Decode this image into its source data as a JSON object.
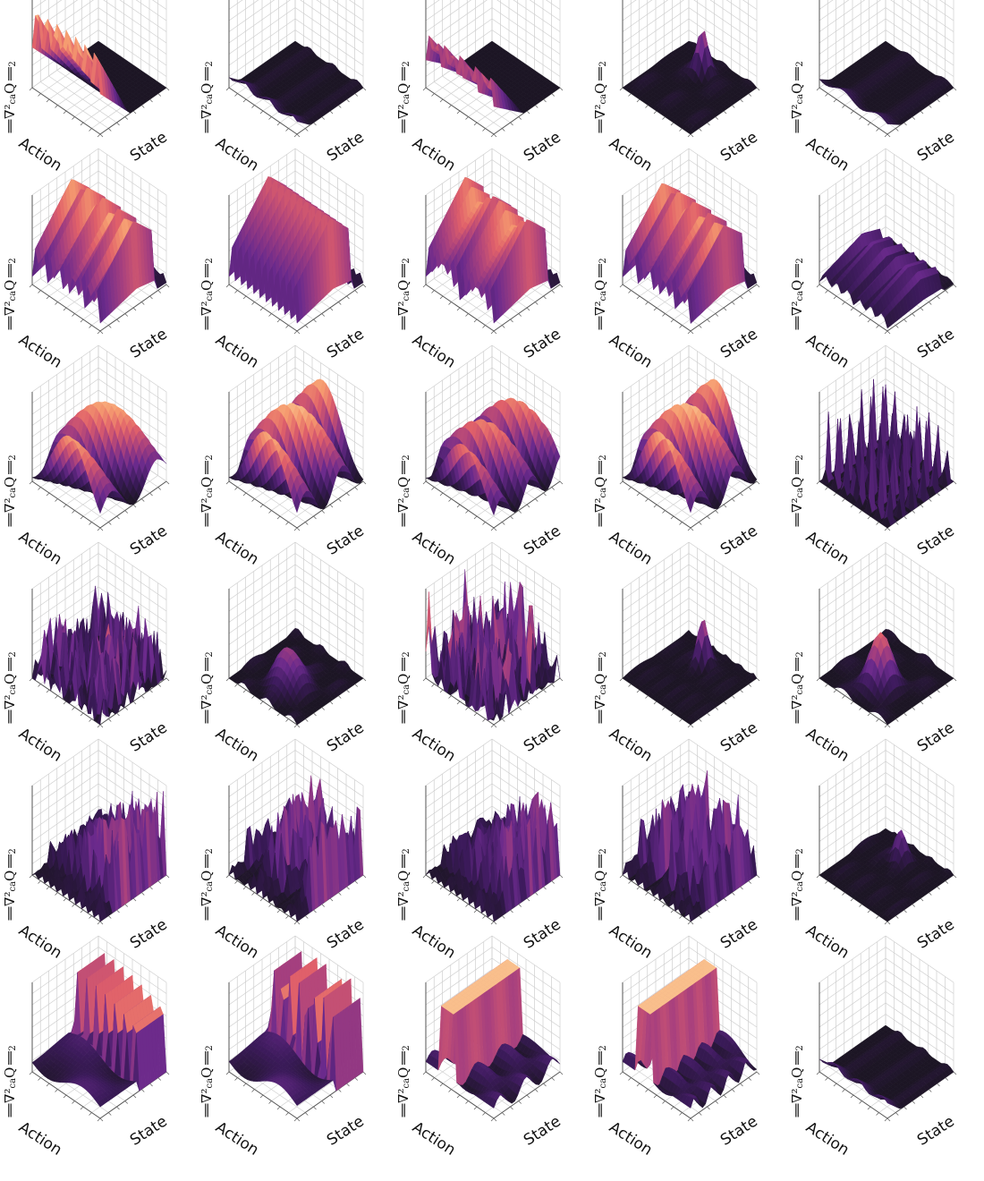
{
  "figure": {
    "rows": 6,
    "cols": 5,
    "zlabel_text": "‖∇²",
    "zlabel_sub": "ca",
    "zlabel_rest": "Q‖",
    "zlabel_tail": "2",
    "xlabel": "Action",
    "ylabel": "State",
    "colormap": [
      "#1c1524",
      "#3b1a5a",
      "#6a2a8c",
      "#a8407e",
      "#e0606a",
      "#f59a6f",
      "#fbd19a"
    ]
  },
  "chart_data": {
    "type": "surface-grid",
    "rows": 6,
    "cols": 5,
    "x_axis": "Action",
    "y_axis": "State",
    "z_axis": "‖∇²caQ‖2",
    "panels": [
      {
        "row": 0,
        "col": 0,
        "amp": 0.95,
        "pattern": "ridge-front",
        "freq": 7
      },
      {
        "row": 0,
        "col": 1,
        "amp": 0.25,
        "pattern": "flat-edge",
        "freq": 3
      },
      {
        "row": 0,
        "col": 2,
        "amp": 0.65,
        "pattern": "ridge-front",
        "freq": 9
      },
      {
        "row": 0,
        "col": 3,
        "amp": 0.55,
        "pattern": "spike",
        "freq": 2
      },
      {
        "row": 0,
        "col": 4,
        "amp": 0.2,
        "pattern": "flat-edge",
        "freq": 2
      },
      {
        "row": 1,
        "col": 0,
        "amp": 1.0,
        "pattern": "ripple",
        "freq": 9
      },
      {
        "row": 1,
        "col": 1,
        "amp": 1.0,
        "pattern": "ripple",
        "freq": 11
      },
      {
        "row": 1,
        "col": 2,
        "amp": 1.0,
        "pattern": "ripple",
        "freq": 10
      },
      {
        "row": 1,
        "col": 3,
        "amp": 0.95,
        "pattern": "ripple",
        "freq": 9
      },
      {
        "row": 1,
        "col": 4,
        "amp": 0.35,
        "pattern": "ripple",
        "freq": 6
      },
      {
        "row": 2,
        "col": 0,
        "amp": 0.85,
        "pattern": "wave",
        "freq": 4
      },
      {
        "row": 2,
        "col": 1,
        "amp": 0.9,
        "pattern": "wave",
        "freq": 5
      },
      {
        "row": 2,
        "col": 2,
        "amp": 0.75,
        "pattern": "wave",
        "freq": 6
      },
      {
        "row": 2,
        "col": 3,
        "amp": 0.9,
        "pattern": "wave",
        "freq": 5
      },
      {
        "row": 2,
        "col": 4,
        "amp": 0.85,
        "pattern": "spikes-sparse",
        "freq": 8
      },
      {
        "row": 3,
        "col": 0,
        "amp": 0.8,
        "pattern": "noisy",
        "freq": 12
      },
      {
        "row": 3,
        "col": 1,
        "amp": 0.5,
        "pattern": "hill",
        "freq": 3
      },
      {
        "row": 3,
        "col": 2,
        "amp": 1.0,
        "pattern": "noisy",
        "freq": 14
      },
      {
        "row": 3,
        "col": 3,
        "amp": 0.5,
        "pattern": "spike",
        "freq": 4
      },
      {
        "row": 3,
        "col": 4,
        "amp": 0.6,
        "pattern": "hill",
        "freq": 2
      },
      {
        "row": 4,
        "col": 0,
        "amp": 1.0,
        "pattern": "spikes-dense",
        "freq": 20
      },
      {
        "row": 4,
        "col": 1,
        "amp": 1.0,
        "pattern": "spikes-dense",
        "freq": 22
      },
      {
        "row": 4,
        "col": 2,
        "amp": 0.95,
        "pattern": "spikes-dense",
        "freq": 20
      },
      {
        "row": 4,
        "col": 3,
        "amp": 1.0,
        "pattern": "spikes-dense",
        "freq": 24
      },
      {
        "row": 4,
        "col": 4,
        "amp": 0.4,
        "pattern": "spike",
        "freq": 3
      },
      {
        "row": 5,
        "col": 0,
        "amp": 0.9,
        "pattern": "comb-back",
        "freq": 14
      },
      {
        "row": 5,
        "col": 1,
        "amp": 1.0,
        "pattern": "comb-back",
        "freq": 16
      },
      {
        "row": 5,
        "col": 2,
        "amp": 1.0,
        "pattern": "wall",
        "freq": 4
      },
      {
        "row": 5,
        "col": 3,
        "amp": 1.0,
        "pattern": "wall",
        "freq": 6
      },
      {
        "row": 5,
        "col": 4,
        "amp": 0.3,
        "pattern": "flat-edge",
        "freq": 3
      }
    ]
  }
}
